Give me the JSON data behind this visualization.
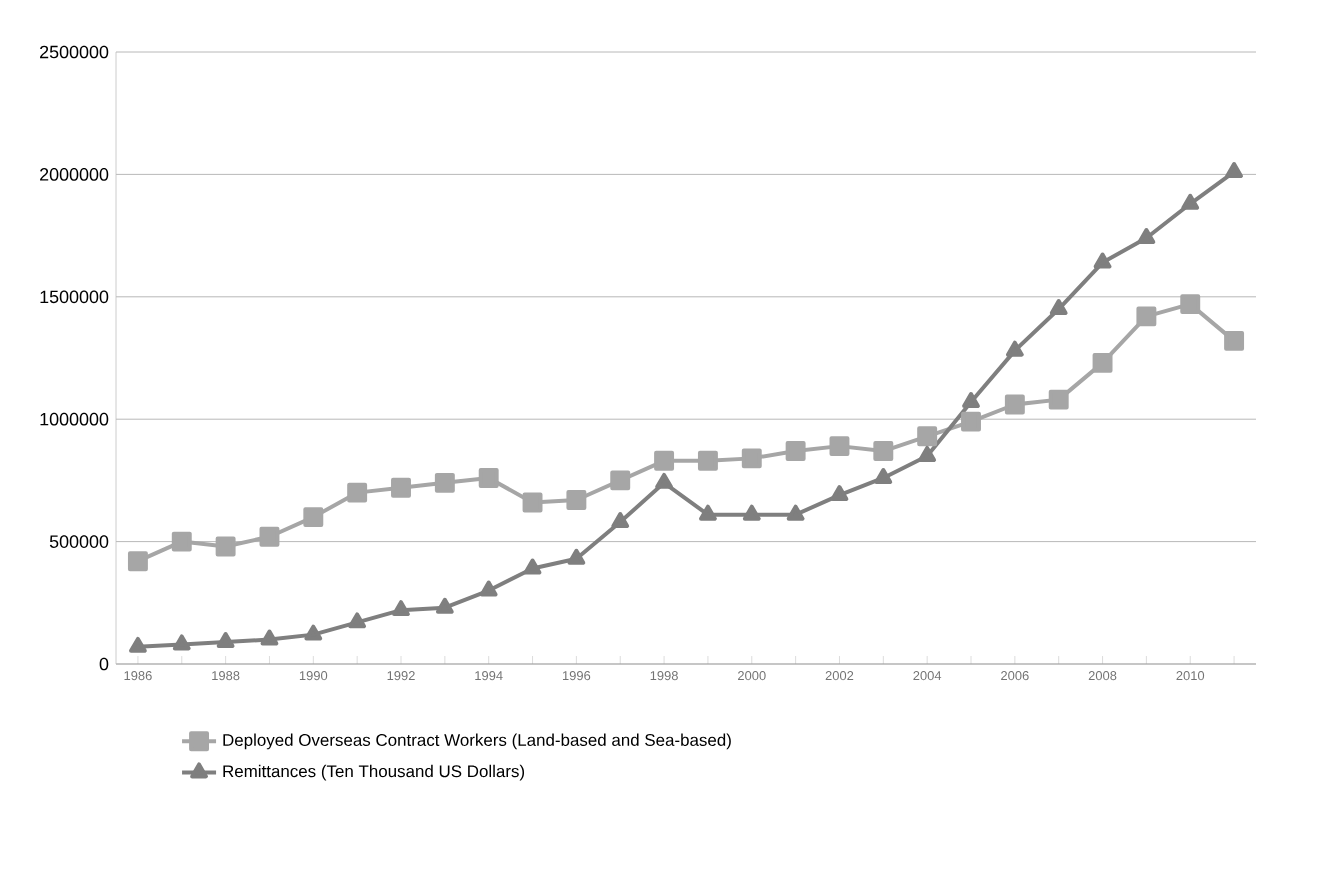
{
  "chart_data": {
    "type": "line",
    "categories": [
      "1986",
      null,
      "1988",
      null,
      "1990",
      null,
      "1992",
      null,
      "1994",
      null,
      "1996",
      null,
      "1998",
      null,
      "2000",
      null,
      "2002",
      null,
      "2004",
      null,
      "2006",
      null,
      "2008",
      null,
      "2010",
      null
    ],
    "series": [
      {
        "name": "Deployed Overseas Contract Workers (Land-based and Sea-based)",
        "color": "#a6a6a6",
        "marker": "square",
        "values": [
          420000,
          500000,
          480000,
          520000,
          600000,
          700000,
          720000,
          740000,
          760000,
          660000,
          670000,
          750000,
          830000,
          830000,
          840000,
          870000,
          890000,
          870000,
          930000,
          990000,
          1060000,
          1080000,
          1230000,
          1420000,
          1470000,
          1320000
        ]
      },
      {
        "name": "Remittances (Ten Thousand US Dollars)",
        "color": "#7f7f7f",
        "marker": "triangle",
        "values": [
          70000,
          80000,
          90000,
          100000,
          120000,
          170000,
          220000,
          230000,
          300000,
          390000,
          430000,
          580000,
          740000,
          610000,
          610000,
          610000,
          690000,
          760000,
          850000,
          1070000,
          1280000,
          1450000,
          1640000,
          1740000,
          1880000,
          2010000
        ]
      }
    ],
    "ylim": [
      0,
      2500000
    ],
    "yticks": [
      0,
      500000,
      1000000,
      1500000,
      2000000,
      2500000
    ],
    "grid": "y",
    "legend": "bottom",
    "line_style": "solid"
  }
}
